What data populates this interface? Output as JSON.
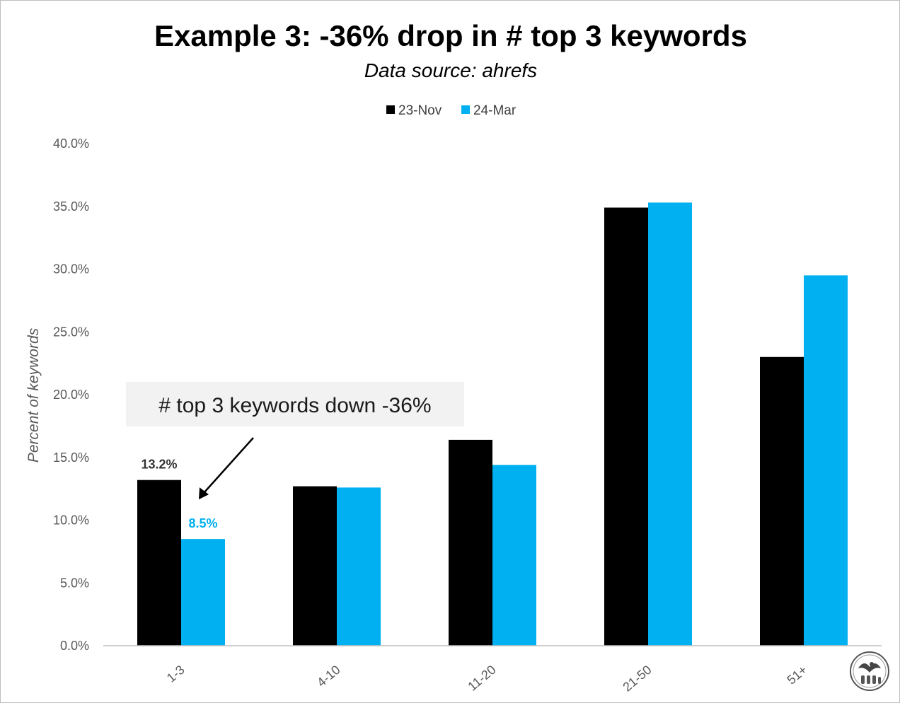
{
  "colors": {
    "series_23nov": "#000000",
    "series_24mar": "#00b0f0",
    "annotation_bg": "#f2f2f2",
    "axis": "#bfbfbf",
    "label_text": "#595959",
    "data_label_dark": "#333333"
  },
  "icons": {
    "logo": "eagle-seal-logo-icon"
  },
  "chart_data": {
    "type": "bar",
    "title": "Example 3: -36% drop in # top 3 keywords",
    "subtitle": "Data source: ahrefs",
    "xlabel": "",
    "ylabel": "Percent of keywords",
    "categories": [
      "1-3",
      "4-10",
      "11-20",
      "21-50",
      "51+"
    ],
    "series": [
      {
        "name": "23-Nov",
        "values": [
          13.2,
          12.7,
          16.4,
          34.9,
          23.0
        ]
      },
      {
        "name": "24-Mar",
        "values": [
          8.5,
          12.6,
          14.4,
          35.3,
          29.5
        ]
      }
    ],
    "ylim": [
      0,
      40
    ],
    "yticks": [
      "0.0%",
      "5.0%",
      "10.0%",
      "15.0%",
      "20.0%",
      "25.0%",
      "30.0%",
      "35.0%",
      "40.0%"
    ],
    "legend_position": "top",
    "grid": false,
    "data_labels": [
      {
        "series": 0,
        "category": 0,
        "text": "13.2%"
      },
      {
        "series": 1,
        "category": 0,
        "text": "8.5%"
      }
    ],
    "annotation": {
      "text": "# top 3 keywords down -36%",
      "points_to": {
        "series": 1,
        "category": 0
      }
    }
  }
}
